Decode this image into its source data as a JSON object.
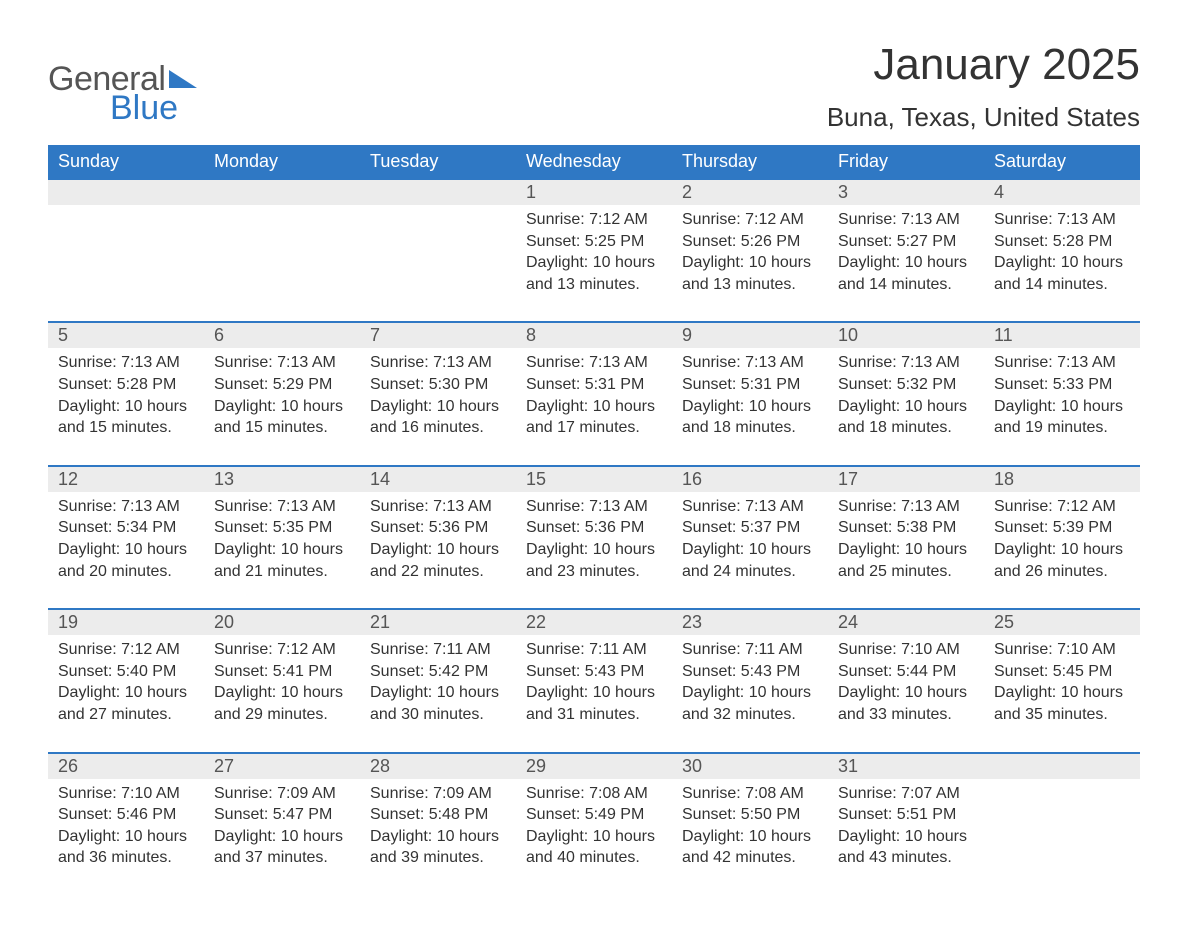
{
  "brand": {
    "word1": "General",
    "word2": "Blue",
    "accent_color": "#2f78c4"
  },
  "title": "January 2025",
  "location": "Buna, Texas, United States",
  "weekday_labels": [
    "Sunday",
    "Monday",
    "Tuesday",
    "Wednesday",
    "Thursday",
    "Friday",
    "Saturday"
  ],
  "styling": {
    "header_bg": "#2f78c4",
    "header_text": "#ffffff",
    "daynum_bg": "#ececec",
    "daynum_text": "#555555",
    "row_divider": "#2f78c4",
    "body_text": "#333333",
    "page_bg": "#ffffff",
    "title_fontsize": 44,
    "location_fontsize": 26,
    "weekday_fontsize": 18,
    "daynum_fontsize": 18,
    "body_fontsize": 16
  },
  "weeks": [
    [
      null,
      null,
      null,
      {
        "n": "1",
        "sunrise": "7:12 AM",
        "sunset": "5:25 PM",
        "daylight": "10 hours and 13 minutes."
      },
      {
        "n": "2",
        "sunrise": "7:12 AM",
        "sunset": "5:26 PM",
        "daylight": "10 hours and 13 minutes."
      },
      {
        "n": "3",
        "sunrise": "7:13 AM",
        "sunset": "5:27 PM",
        "daylight": "10 hours and 14 minutes."
      },
      {
        "n": "4",
        "sunrise": "7:13 AM",
        "sunset": "5:28 PM",
        "daylight": "10 hours and 14 minutes."
      }
    ],
    [
      {
        "n": "5",
        "sunrise": "7:13 AM",
        "sunset": "5:28 PM",
        "daylight": "10 hours and 15 minutes."
      },
      {
        "n": "6",
        "sunrise": "7:13 AM",
        "sunset": "5:29 PM",
        "daylight": "10 hours and 15 minutes."
      },
      {
        "n": "7",
        "sunrise": "7:13 AM",
        "sunset": "5:30 PM",
        "daylight": "10 hours and 16 minutes."
      },
      {
        "n": "8",
        "sunrise": "7:13 AM",
        "sunset": "5:31 PM",
        "daylight": "10 hours and 17 minutes."
      },
      {
        "n": "9",
        "sunrise": "7:13 AM",
        "sunset": "5:31 PM",
        "daylight": "10 hours and 18 minutes."
      },
      {
        "n": "10",
        "sunrise": "7:13 AM",
        "sunset": "5:32 PM",
        "daylight": "10 hours and 18 minutes."
      },
      {
        "n": "11",
        "sunrise": "7:13 AM",
        "sunset": "5:33 PM",
        "daylight": "10 hours and 19 minutes."
      }
    ],
    [
      {
        "n": "12",
        "sunrise": "7:13 AM",
        "sunset": "5:34 PM",
        "daylight": "10 hours and 20 minutes."
      },
      {
        "n": "13",
        "sunrise": "7:13 AM",
        "sunset": "5:35 PM",
        "daylight": "10 hours and 21 minutes."
      },
      {
        "n": "14",
        "sunrise": "7:13 AM",
        "sunset": "5:36 PM",
        "daylight": "10 hours and 22 minutes."
      },
      {
        "n": "15",
        "sunrise": "7:13 AM",
        "sunset": "5:36 PM",
        "daylight": "10 hours and 23 minutes."
      },
      {
        "n": "16",
        "sunrise": "7:13 AM",
        "sunset": "5:37 PM",
        "daylight": "10 hours and 24 minutes."
      },
      {
        "n": "17",
        "sunrise": "7:13 AM",
        "sunset": "5:38 PM",
        "daylight": "10 hours and 25 minutes."
      },
      {
        "n": "18",
        "sunrise": "7:12 AM",
        "sunset": "5:39 PM",
        "daylight": "10 hours and 26 minutes."
      }
    ],
    [
      {
        "n": "19",
        "sunrise": "7:12 AM",
        "sunset": "5:40 PM",
        "daylight": "10 hours and 27 minutes."
      },
      {
        "n": "20",
        "sunrise": "7:12 AM",
        "sunset": "5:41 PM",
        "daylight": "10 hours and 29 minutes."
      },
      {
        "n": "21",
        "sunrise": "7:11 AM",
        "sunset": "5:42 PM",
        "daylight": "10 hours and 30 minutes."
      },
      {
        "n": "22",
        "sunrise": "7:11 AM",
        "sunset": "5:43 PM",
        "daylight": "10 hours and 31 minutes."
      },
      {
        "n": "23",
        "sunrise": "7:11 AM",
        "sunset": "5:43 PM",
        "daylight": "10 hours and 32 minutes."
      },
      {
        "n": "24",
        "sunrise": "7:10 AM",
        "sunset": "5:44 PM",
        "daylight": "10 hours and 33 minutes."
      },
      {
        "n": "25",
        "sunrise": "7:10 AM",
        "sunset": "5:45 PM",
        "daylight": "10 hours and 35 minutes."
      }
    ],
    [
      {
        "n": "26",
        "sunrise": "7:10 AM",
        "sunset": "5:46 PM",
        "daylight": "10 hours and 36 minutes."
      },
      {
        "n": "27",
        "sunrise": "7:09 AM",
        "sunset": "5:47 PM",
        "daylight": "10 hours and 37 minutes."
      },
      {
        "n": "28",
        "sunrise": "7:09 AM",
        "sunset": "5:48 PM",
        "daylight": "10 hours and 39 minutes."
      },
      {
        "n": "29",
        "sunrise": "7:08 AM",
        "sunset": "5:49 PM",
        "daylight": "10 hours and 40 minutes."
      },
      {
        "n": "30",
        "sunrise": "7:08 AM",
        "sunset": "5:50 PM",
        "daylight": "10 hours and 42 minutes."
      },
      {
        "n": "31",
        "sunrise": "7:07 AM",
        "sunset": "5:51 PM",
        "daylight": "10 hours and 43 minutes."
      },
      null
    ]
  ],
  "labels": {
    "sunrise": "Sunrise: ",
    "sunset": "Sunset: ",
    "daylight": "Daylight: "
  }
}
